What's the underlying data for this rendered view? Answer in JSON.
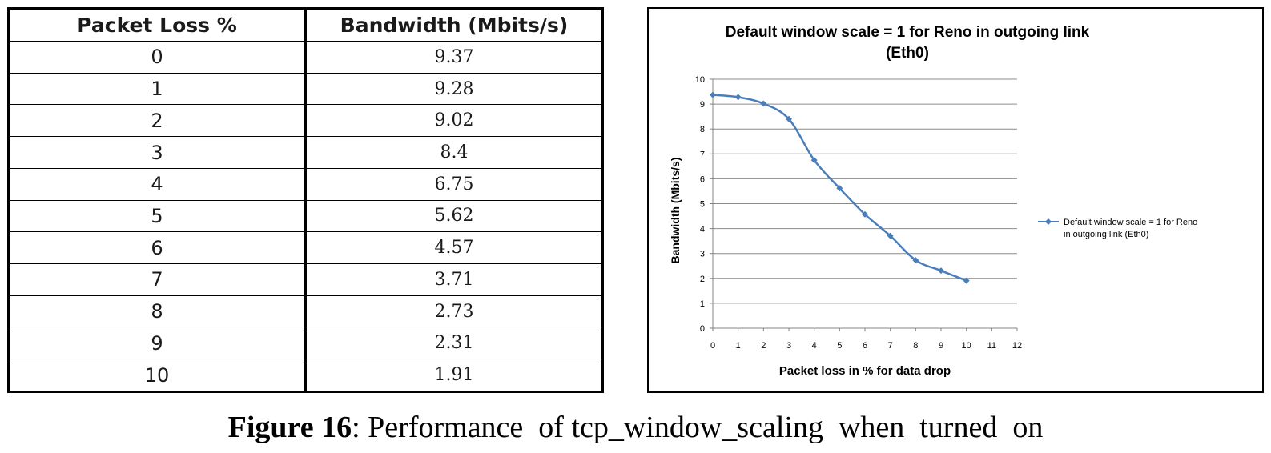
{
  "table": {
    "headers": [
      "Packet Loss %",
      "Bandwidth (Mbits/s)"
    ],
    "rows": [
      [
        "0",
        "9.37"
      ],
      [
        "1",
        "9.28"
      ],
      [
        "2",
        "9.02"
      ],
      [
        "3",
        "8.4"
      ],
      [
        "4",
        "6.75"
      ],
      [
        "5",
        "5.62"
      ],
      [
        "6",
        "4.57"
      ],
      [
        "7",
        "3.71"
      ],
      [
        "8",
        "2.73"
      ],
      [
        "9",
        "2.31"
      ],
      [
        "10",
        "1.91"
      ]
    ]
  },
  "chart_data": {
    "type": "line",
    "title": "Default window scale = 1 for Reno in outgoing link (Eth0)",
    "xlabel": "Packet loss in % for data drop",
    "ylabel": "Bandwidth (Mbits/s)",
    "xlim": [
      0,
      12
    ],
    "ylim": [
      0,
      10
    ],
    "xticks": [
      0,
      1,
      2,
      3,
      4,
      5,
      6,
      7,
      8,
      9,
      10,
      11,
      12
    ],
    "yticks": [
      0,
      1,
      2,
      3,
      4,
      5,
      6,
      7,
      8,
      9,
      10
    ],
    "grid": "horizontal",
    "legend": "right",
    "series": [
      {
        "name": "Default window scale = 1 for Reno in outgoing link (Eth0)",
        "color": "#4a7ebb",
        "marker": "diamond",
        "smooth": true,
        "x": [
          0,
          1,
          2,
          3,
          4,
          5,
          6,
          7,
          8,
          9,
          10
        ],
        "y": [
          9.37,
          9.28,
          9.02,
          8.4,
          6.75,
          5.62,
          4.57,
          3.71,
          2.73,
          2.31,
          1.91
        ]
      }
    ]
  },
  "caption": {
    "label": "Figure 16",
    "text": ": Performance  of tcp_window_scaling  when  turned  on"
  }
}
